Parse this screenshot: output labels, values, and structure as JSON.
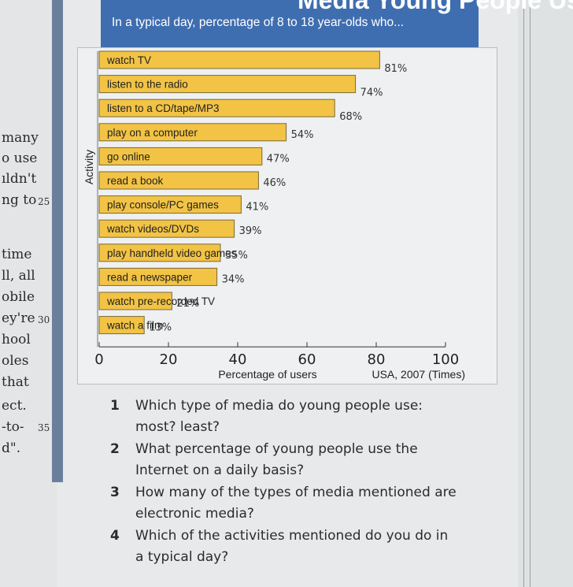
{
  "left_column": {
    "lines": [
      "many",
      "o use",
      "ıldn't",
      "ng to",
      "time",
      "ll, all",
      "obile",
      "ey're",
      "hool",
      "oles",
      "that",
      "ect.",
      "-to-",
      "d\"."
    ],
    "line_numbers": [
      "25",
      "30",
      "35"
    ]
  },
  "header": {
    "title": "Media Young People Use",
    "subtitle": "In a typical day, percentage of 8 to 18 year-olds who..."
  },
  "chart_data": {
    "type": "bar",
    "orientation": "horizontal",
    "categories": [
      "watch TV",
      "listen to the radio",
      "listen to a CD/tape/MP3",
      "play on a computer",
      "go online",
      "read a book",
      "play console/PC games",
      "watch videos/DVDs",
      "play handheld video games",
      "read a newspaper",
      "watch pre-recorded TV",
      "watch a film"
    ],
    "values": [
      81,
      74,
      68,
      54,
      47,
      46,
      41,
      39,
      35,
      34,
      21,
      13
    ],
    "value_labels": [
      "81%",
      "74%",
      "68%",
      "54%",
      "47%",
      "46%",
      "41%",
      "39%",
      "35%",
      "34%",
      "21%",
      "13%"
    ],
    "ylabel": "Activity",
    "xlabel": "Percentage of users",
    "source": "USA, 2007 (Times)",
    "xlim": [
      0,
      100
    ],
    "xticks": [
      "0",
      "20",
      "40",
      "60",
      "80",
      "100"
    ],
    "bar_color": "#f2c344",
    "bar_border": "#7a6a3a"
  },
  "questions": [
    {
      "num": "1",
      "text": "Which type of media do young people use: most? least?"
    },
    {
      "num": "2",
      "text": "What percentage of young people use the Internet on a daily basis?"
    },
    {
      "num": "3",
      "text": "How many of the types of media mentioned are electronic media?"
    },
    {
      "num": "4",
      "text": "Which of the activities mentioned do you do in a typical day?"
    }
  ]
}
